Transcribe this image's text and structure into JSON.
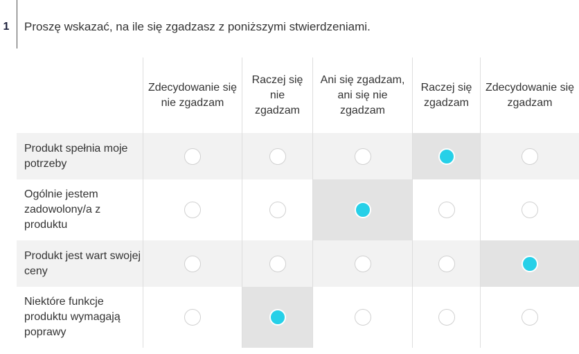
{
  "question": {
    "number": "1",
    "text": "Proszę wskazać, na ile się zgadzasz z poniższymi stwierdzeniami."
  },
  "matrix": {
    "columns": [
      "Zdecydowanie się nie zgadzam",
      "Raczej się nie zgadzam",
      "Ani się zgadzam, ani się nie zgadzam",
      "Raczej się zgadzam",
      "Zdecydowanie się zgadzam"
    ],
    "rows": [
      {
        "label": "Produkt spełnia moje potrzeby",
        "selected": 3
      },
      {
        "label": "Ogólnie jestem zadowolony/a z produktu",
        "selected": 2
      },
      {
        "label": "Produkt jest wart swojej ceny",
        "selected": 4
      },
      {
        "label": "Niektóre funkcje produktu wymagają poprawy",
        "selected": 1
      }
    ]
  },
  "colors": {
    "accent": "#26d0e8",
    "row_stripe": "#f2f2f2",
    "selected_cell": "#e3e3e3",
    "text": "#333333"
  }
}
